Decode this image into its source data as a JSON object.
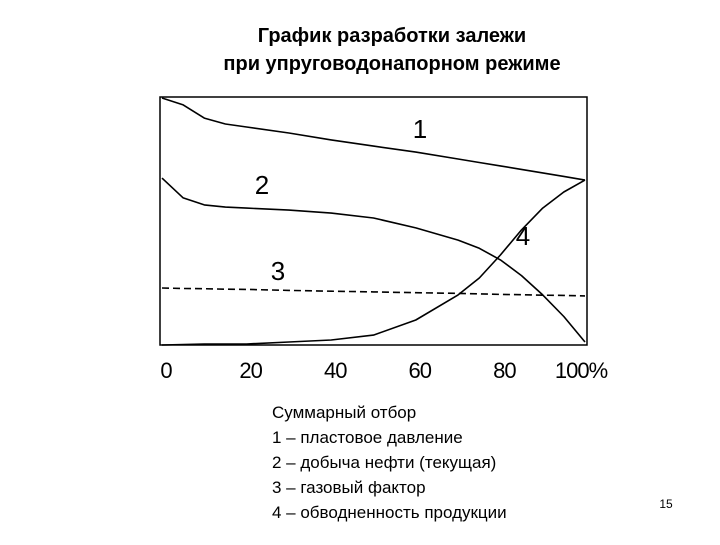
{
  "chart_data": {
    "type": "line",
    "title": [
      "График разработки залежи",
      "при упруговодонапорном режиме"
    ],
    "x": [
      0,
      5,
      10,
      15,
      20,
      30,
      40,
      50,
      60,
      70,
      75,
      80,
      85,
      90,
      95,
      100
    ],
    "xlim": [
      0,
      100
    ],
    "xticks": [
      0,
      20,
      40,
      60,
      80,
      {
        "value": 100,
        "label": "100%"
      }
    ],
    "ylim": [
      0,
      100
    ],
    "series": [
      {
        "name": "1",
        "color": "#000000",
        "dashed": false,
        "values": [
          99.6,
          96.8,
          91.5,
          89.1,
          87.9,
          85.5,
          82.7,
          80.2,
          77.8,
          75.0,
          73.6,
          72.2,
          70.8,
          69.4,
          68.0,
          66.5
        ]
      },
      {
        "name": "2",
        "color": "#000000",
        "dashed": false,
        "values": [
          67.3,
          59.3,
          56.5,
          55.6,
          55.2,
          54.4,
          53.2,
          51.2,
          47.2,
          42.3,
          39.0,
          34.3,
          28.0,
          20.2,
          11.5,
          1.2
        ]
      },
      {
        "name": "3",
        "color": "#000000",
        "dashed": true,
        "values": [
          23.0,
          22.8,
          22.7,
          22.5,
          22.4,
          22.0,
          21.7,
          21.4,
          21.1,
          20.8,
          20.6,
          20.4,
          20.3,
          20.1,
          20.0,
          19.8
        ]
      },
      {
        "name": "4",
        "color": "#000000",
        "dashed": false,
        "values": [
          0,
          0.2,
          0.4,
          0.4,
          0.4,
          1.2,
          2.0,
          4.0,
          10.1,
          20.2,
          27.0,
          36.3,
          46.4,
          55.2,
          61.7,
          66.5
        ]
      }
    ]
  },
  "caption": [
    "Суммарный отбор",
    "1 – пластовое давление",
    "2 – добыча нефти (текущая)",
    "3 – газовый фактор",
    "4 – обводненность продукции"
  ],
  "page_number": "15"
}
